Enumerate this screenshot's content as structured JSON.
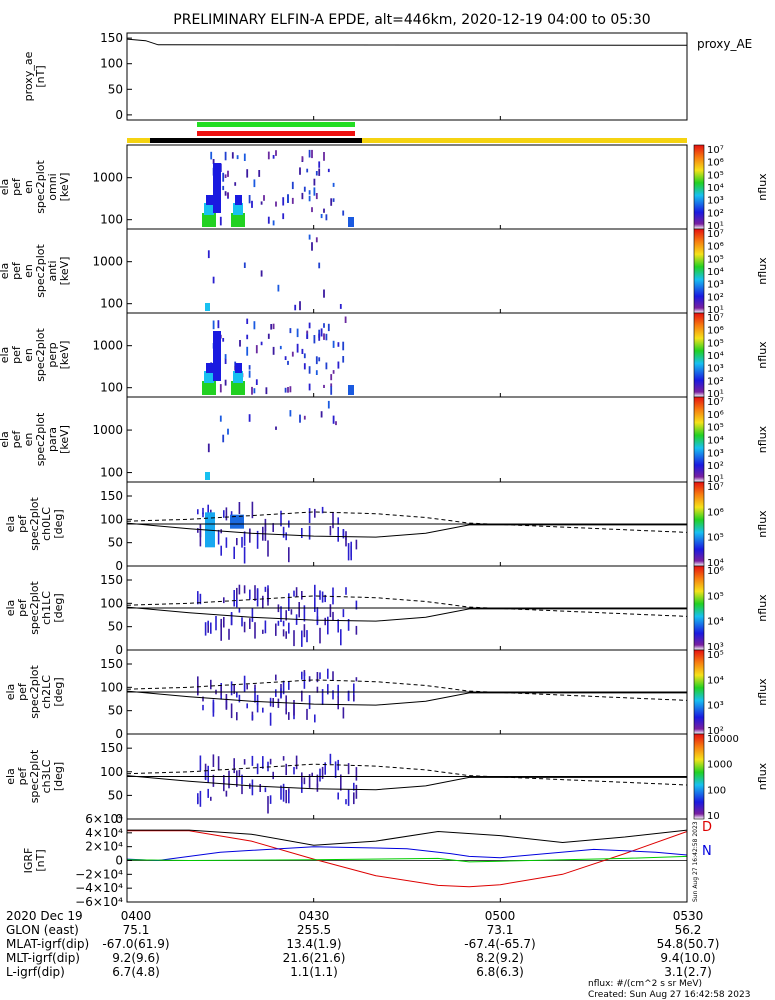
{
  "title": "PRELIMINARY ELFIN-A EPDE, alt=446km, 2020-12-19 04:00 to 05:30",
  "footer": {
    "nflux_units": "nflux: #/(cm^2 s sr MeV)",
    "created": "Created: Sun Aug 27 16:42:58 2023",
    "vertical_stamp": "Sun Aug 27 16:42:58 2023"
  },
  "colors": {
    "bar_green": "#22dd22",
    "bar_red": "#ee1111",
    "bar_black": "#000000",
    "bar_yellow": "#f5d311",
    "bx": "#dd0000",
    "by": "#0000dd",
    "bz": "#00cc00"
  },
  "time_axis": {
    "range": [
      "04:00",
      "05:30"
    ],
    "ticks": [
      "0400",
      "0430",
      "0500",
      "0530"
    ]
  },
  "orbit_table": {
    "rows": [
      {
        "label": "2020 Dec 19",
        "values": [
          "0400",
          "0430",
          "0500",
          "0530"
        ]
      },
      {
        "label": "GLON (east)",
        "values": [
          "75.1",
          "255.5",
          "73.1",
          "56.2"
        ]
      },
      {
        "label": "MLAT-igrf(dip)",
        "values": [
          "-67.0(61.9)",
          "13.4(1.9)",
          "-67.4(-65.7)",
          "54.8(50.7)"
        ]
      },
      {
        "label": "MLT-igrf(dip)",
        "values": [
          "9.2(9.6)",
          "21.6(21.6)",
          "8.2(9.2)",
          "9.4(10.0)"
        ]
      },
      {
        "label": "L-igrf(dip)",
        "values": [
          "6.7(4.8)",
          "1.1(1.1)",
          "6.8(6.3)",
          "3.1(2.7)"
        ]
      }
    ]
  },
  "chart_data": [
    {
      "type": "line",
      "ylabel": [
        "proxy_ae",
        "[nT]"
      ],
      "yticks": [
        "150",
        "100",
        "50",
        "0"
      ],
      "ylim": [
        -10,
        160
      ],
      "series": [
        {
          "name": "proxy_AE",
          "x": [
            "04:00",
            "04:03",
            "04:05",
            "05:30"
          ],
          "values": [
            148,
            145,
            137,
            136
          ]
        }
      ]
    },
    {
      "type": "heatmap",
      "ylabel": [
        "ela",
        "pef",
        "en",
        "spec2plot",
        "omni",
        "[keV]"
      ],
      "yticks": [
        "1000",
        "100"
      ],
      "ylog": true,
      "active_interval": [
        "04:13",
        "04:35"
      ],
      "colorbar": {
        "label": "nflux",
        "ticks": [
          "10⁷",
          "10⁶",
          "10⁵",
          "10⁴",
          "10³",
          "10²",
          "10¹"
        ]
      }
    },
    {
      "type": "heatmap",
      "ylabel": [
        "ela",
        "pef",
        "en",
        "spec2plot",
        "anti",
        "[keV]"
      ],
      "yticks": [
        "1000",
        "100"
      ],
      "ylog": true,
      "active_interval": [
        "04:13",
        "04:35"
      ],
      "colorbar": {
        "label": "nflux",
        "ticks": [
          "10⁷",
          "10⁶",
          "10⁵",
          "10⁴",
          "10³",
          "10²",
          "10¹"
        ]
      }
    },
    {
      "type": "heatmap",
      "ylabel": [
        "ela",
        "pef",
        "en",
        "spec2plot",
        "perp",
        "[keV]"
      ],
      "yticks": [
        "1000",
        "100"
      ],
      "ylog": true,
      "active_interval": [
        "04:13",
        "04:35"
      ],
      "colorbar": {
        "label": "nflux",
        "ticks": [
          "10⁷",
          "10⁶",
          "10⁵",
          "10⁴",
          "10³",
          "10²",
          "10¹"
        ]
      }
    },
    {
      "type": "heatmap",
      "ylabel": [
        "ela",
        "pef",
        "en",
        "spec2plot",
        "para",
        "[keV]"
      ],
      "yticks": [
        "1000",
        "100"
      ],
      "ylog": true,
      "active_interval": [
        "04:13",
        "04:35"
      ],
      "colorbar": {
        "label": "nflux",
        "ticks": [
          "10⁷",
          "10⁶",
          "10⁵",
          "10⁴",
          "10³",
          "10²",
          "10¹"
        ]
      }
    },
    {
      "type": "heatmap",
      "ylabel": [
        "ela",
        "pef",
        "spec2plot",
        "ch0LC",
        "[deg]"
      ],
      "yticks": [
        "150",
        "100",
        "50",
        "0"
      ],
      "ylim": [
        0,
        180
      ],
      "colorbar": {
        "label": "nflux",
        "ticks": [
          "10⁷",
          "10⁶",
          "10⁵",
          "10⁴"
        ]
      }
    },
    {
      "type": "heatmap",
      "ylabel": [
        "ela",
        "pef",
        "spec2plot",
        "ch1LC",
        "[deg]"
      ],
      "yticks": [
        "150",
        "100",
        "50",
        "0"
      ],
      "ylim": [
        0,
        180
      ],
      "colorbar": {
        "label": "nflux",
        "ticks": [
          "10⁶",
          "10⁵",
          "10⁴",
          "10³"
        ]
      }
    },
    {
      "type": "heatmap",
      "ylabel": [
        "ela",
        "pef",
        "spec2plot",
        "ch2LC",
        "[deg]"
      ],
      "yticks": [
        "150",
        "100",
        "50",
        "0"
      ],
      "ylim": [
        0,
        180
      ],
      "colorbar": {
        "label": "nflux",
        "ticks": [
          "10⁵",
          "10⁴",
          "10³",
          "10²"
        ]
      }
    },
    {
      "type": "heatmap",
      "ylabel": [
        "ela",
        "pef",
        "spec2plot",
        "ch3LC",
        "[deg]"
      ],
      "yticks": [
        "150",
        "100",
        "50",
        "0"
      ],
      "ylim": [
        0,
        180
      ],
      "colorbar": {
        "label": "nflux",
        "ticks": [
          "10000",
          "1000",
          "100",
          "10"
        ]
      }
    },
    {
      "type": "line",
      "ylabel": [
        "IGRF",
        "[nT]"
      ],
      "yticks": [
        "6×10⁴",
        "4×10⁴",
        "2×10⁴",
        "0",
        "−2×10⁴",
        "−4×10⁴",
        "−6×10⁴"
      ],
      "ylim": [
        -60000,
        60000
      ],
      "component_labels": [
        "D",
        "N"
      ],
      "series": [
        {
          "name": "D",
          "x": [
            "04:00",
            "04:10",
            "04:20",
            "04:30",
            "04:40",
            "04:50",
            "04:55",
            "05:00",
            "05:10",
            "05:20",
            "05:30"
          ],
          "values": [
            43000,
            43000,
            28000,
            2000,
            -22000,
            -36000,
            -38000,
            -35000,
            -20000,
            10000,
            42000
          ]
        },
        {
          "name": "N",
          "x": [
            "04:00",
            "04:05",
            "04:15",
            "04:30",
            "04:45",
            "04:52",
            "04:55",
            "05:00",
            "05:15",
            "05:25",
            "05:30"
          ],
          "values": [
            2000,
            0,
            12000,
            20000,
            17000,
            10000,
            6000,
            4000,
            16000,
            12000,
            8000
          ]
        },
        {
          "name": "black",
          "x": [
            "04:00",
            "04:10",
            "04:20",
            "04:30",
            "04:40",
            "04:50",
            "05:00",
            "05:10",
            "05:20",
            "05:30"
          ],
          "values": [
            44000,
            44000,
            38000,
            22000,
            28000,
            42000,
            36000,
            26000,
            34000,
            44000
          ]
        },
        {
          "name": "green",
          "x": [
            "04:00",
            "04:10",
            "04:30",
            "04:50",
            "04:55",
            "05:00",
            "05:20",
            "05:30"
          ],
          "values": [
            1000,
            0,
            1000,
            3000,
            -2000,
            -1000,
            3000,
            6000
          ]
        }
      ]
    }
  ]
}
